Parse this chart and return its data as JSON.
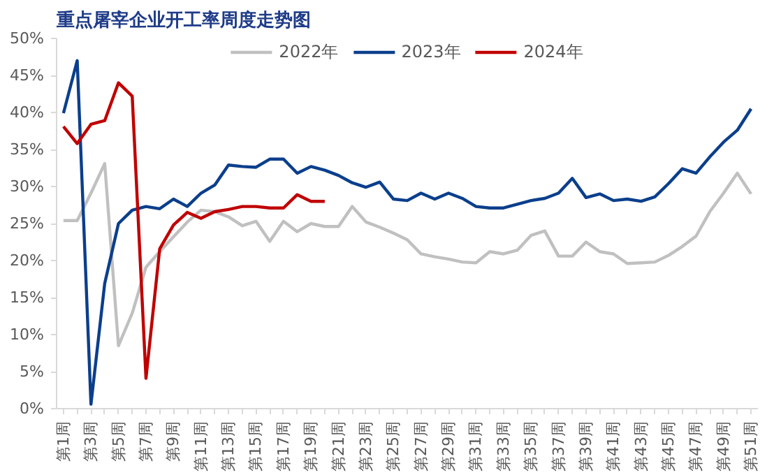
{
  "chart_data": {
    "type": "line",
    "title": "重点屠宰企业开工率周度走势图",
    "categories": [
      "第1周",
      null,
      "第3周",
      null,
      "第5周",
      null,
      "第7周",
      null,
      "第9周",
      null,
      "第11周",
      null,
      "第13周",
      null,
      "第15周",
      null,
      "第17周",
      null,
      "第19周",
      null,
      "第21周",
      null,
      "第23周",
      null,
      "第25周",
      null,
      "第27周",
      null,
      "第29周",
      null,
      "第31周",
      null,
      "第33周",
      null,
      "第35周",
      null,
      "第37周",
      null,
      "第39周",
      null,
      "第41周",
      null,
      "第43周",
      null,
      "第45周",
      null,
      "第47周",
      null,
      "第49周",
      null,
      "第51周"
    ],
    "series": [
      {
        "name": "2022年",
        "color": "#c0c0c0",
        "values": [
          25.4,
          25.4,
          29.1,
          33.1,
          8.5,
          12.9,
          19.1,
          21.2,
          23.2,
          25.2,
          26.8,
          26.6,
          25.9,
          24.7,
          25.3,
          22.6,
          25.3,
          23.9,
          25.0,
          24.6,
          24.6,
          27.3,
          25.2,
          24.5,
          23.7,
          22.8,
          20.9,
          20.5,
          20.2,
          19.8,
          19.7,
          21.2,
          20.9,
          21.4,
          23.4,
          24.0,
          20.6,
          20.6,
          22.5,
          21.2,
          20.9,
          19.6,
          19.7,
          19.8,
          20.7,
          21.9,
          23.3,
          26.6,
          29.1,
          31.8,
          29.0
        ]
      },
      {
        "name": "2023年",
        "color": "#0b3f8c",
        "values": [
          39.9,
          47.0,
          0.6,
          16.9,
          25.0,
          26.8,
          27.3,
          27.0,
          28.3,
          27.3,
          29.1,
          30.2,
          32.9,
          32.7,
          32.6,
          33.7,
          33.7,
          31.8,
          32.7,
          32.2,
          31.5,
          30.5,
          29.9,
          30.6,
          28.3,
          28.1,
          29.1,
          28.3,
          29.1,
          28.4,
          27.3,
          27.1,
          27.1,
          27.6,
          28.1,
          28.4,
          29.1,
          31.1,
          28.5,
          29.0,
          28.1,
          28.3,
          28.0,
          28.6,
          30.4,
          32.4,
          31.8,
          34.0,
          36.0,
          37.6,
          40.5
        ]
      },
      {
        "name": "2024年",
        "color": "#c00000",
        "values": [
          38.1,
          35.8,
          38.4,
          38.9,
          44.0,
          42.2,
          4.1,
          21.6,
          24.8,
          26.5,
          25.7,
          26.6,
          26.9,
          27.3,
          27.3,
          27.1,
          27.1,
          28.9,
          28.0,
          28.0,
          null,
          null,
          null,
          null,
          null,
          null,
          null,
          null,
          null,
          null,
          null,
          null,
          null,
          null,
          null,
          null,
          null,
          null,
          null,
          null,
          null,
          null,
          null,
          null,
          null,
          null,
          null,
          null,
          null,
          null,
          null
        ]
      }
    ],
    "ylim": [
      0,
      50
    ],
    "yticks": [
      {
        "value": 0,
        "label": "0%"
      },
      {
        "value": 5,
        "label": "5%"
      },
      {
        "value": 10,
        "label": "10%"
      },
      {
        "value": 15,
        "label": "15%"
      },
      {
        "value": 20,
        "label": "20%"
      },
      {
        "value": 25,
        "label": "25%"
      },
      {
        "value": 30,
        "label": "30%"
      },
      {
        "value": 35,
        "label": "35%"
      },
      {
        "value": 40,
        "label": "40%"
      },
      {
        "value": 45,
        "label": "45%"
      },
      {
        "value": 50,
        "label": "50%"
      }
    ],
    "grid": false,
    "legend": "top",
    "marker": "none",
    "line_style": "solid"
  }
}
